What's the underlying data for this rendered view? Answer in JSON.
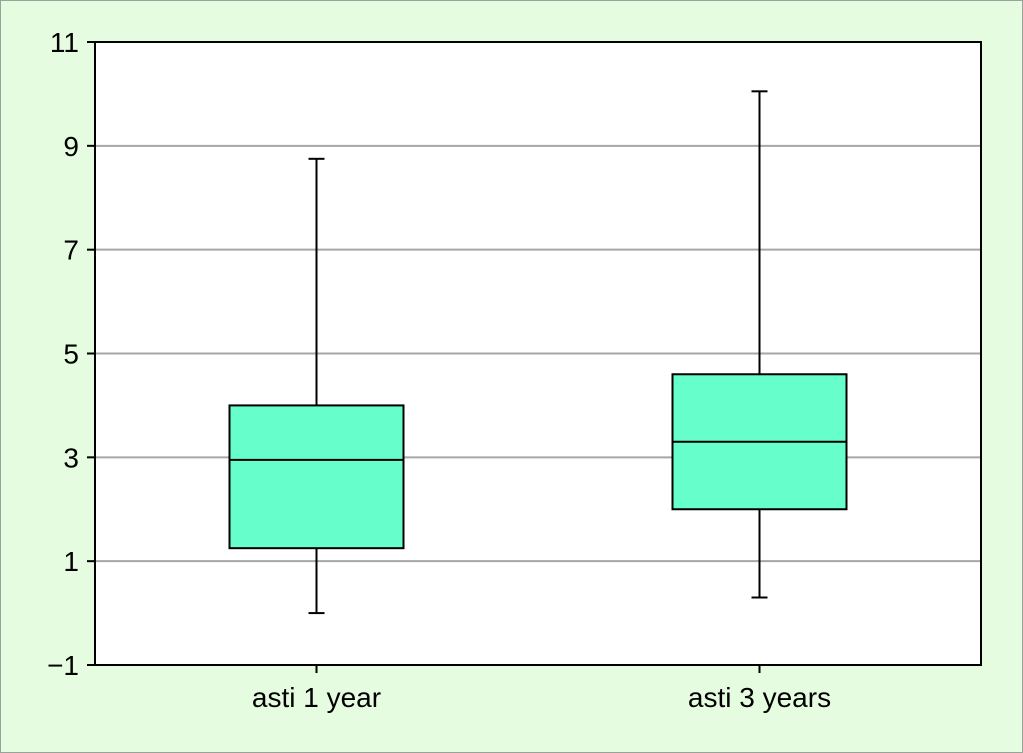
{
  "colors": {
    "background": "#e6fce0",
    "plot_area": "#ffffff",
    "box_fill": "#66ffcc",
    "gridline": "#a6a6a6",
    "line": "#000000"
  },
  "chart_data": {
    "type": "boxplot",
    "title": "",
    "xlabel": "",
    "ylabel": "",
    "ylim": [
      -1,
      11
    ],
    "yticks": [
      -1,
      1,
      3,
      5,
      7,
      9,
      11
    ],
    "ytick_labels": [
      "−1",
      "1",
      "3",
      "5",
      "7",
      "9",
      "11"
    ],
    "grid": "horizontal",
    "legend": "none",
    "categories": [
      "asti 1 year",
      "asti 3 years"
    ],
    "boxes": [
      {
        "category": "asti 1 year",
        "whisker_low": 0.0,
        "q1": 1.25,
        "median": 2.95,
        "q3": 4.0,
        "whisker_high": 8.75
      },
      {
        "category": "asti 3 years",
        "whisker_low": 0.3,
        "q1": 2.0,
        "median": 3.3,
        "q3": 4.6,
        "whisker_high": 10.05
      }
    ]
  }
}
